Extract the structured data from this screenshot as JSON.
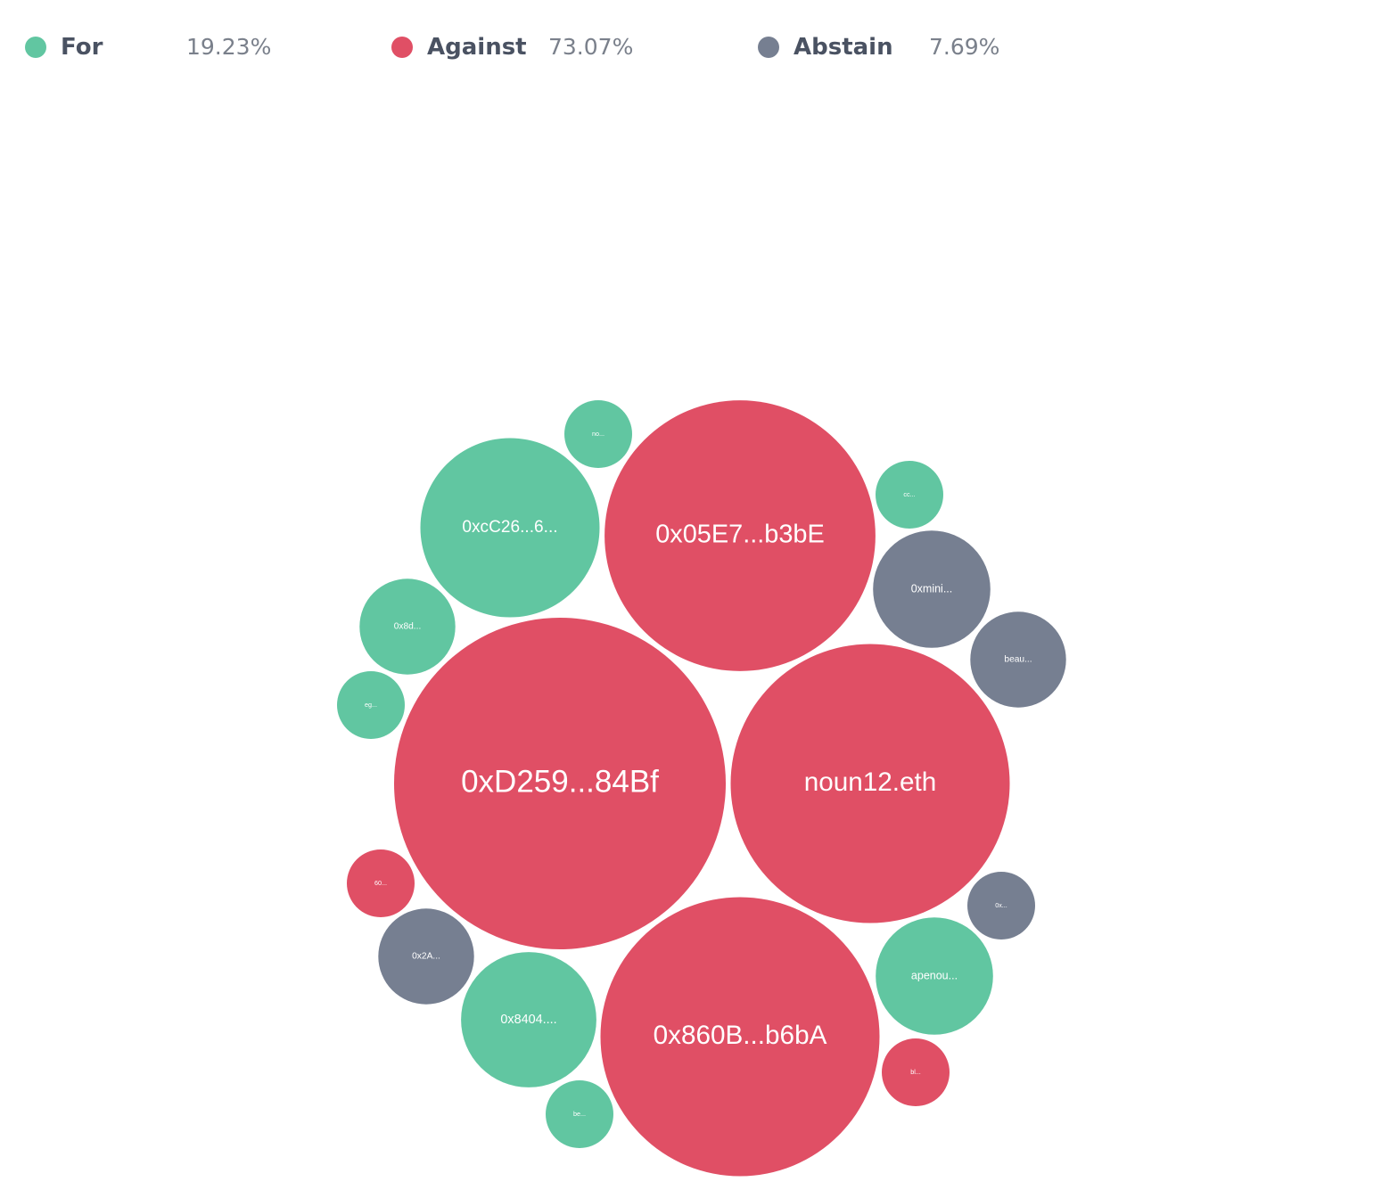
{
  "legend": [
    {
      "label": "For",
      "value": "19.23%",
      "color": "#61c6a1"
    },
    {
      "label": "Against",
      "value": "73.07%",
      "color": "#e04f65"
    },
    {
      "label": "Abstain",
      "value": "7.69%",
      "color": "#767f91"
    }
  ],
  "chart_data": {
    "type": "bubble",
    "categories": [
      "For",
      "Against",
      "Abstain"
    ],
    "colors": {
      "For": "#61c6a1",
      "Against": "#e04f65",
      "Abstain": "#767f91"
    },
    "bubbles": [
      {
        "label": "0xD259...84Bf",
        "category": "Against",
        "weight": 36
      },
      {
        "label": "noun12.eth",
        "category": "Against",
        "weight": 25.5
      },
      {
        "label": "0x860B...b6bA",
        "category": "Against",
        "weight": 25.5
      },
      {
        "label": "0x05E7...b3bE",
        "category": "Against",
        "weight": 24
      },
      {
        "label": "0xcC26...6...",
        "category": "For",
        "weight": 10.5
      },
      {
        "label": "0x8404....",
        "category": "For",
        "weight": 6
      },
      {
        "label": "apenou...",
        "category": "For",
        "weight": 4.5
      },
      {
        "label": "0xmini...",
        "category": "Abstain",
        "weight": 4.5
      },
      {
        "label": "beau...",
        "category": "Abstain",
        "weight": 3
      },
      {
        "label": "0x2A...",
        "category": "Abstain",
        "weight": 3
      },
      {
        "label": "0x8d...",
        "category": "For",
        "weight": 3
      },
      {
        "label": "no...",
        "category": "For",
        "weight": 1.5
      },
      {
        "label": "cc...",
        "category": "For",
        "weight": 1.5
      },
      {
        "label": "eg...",
        "category": "For",
        "weight": 1.5
      },
      {
        "label": "be...",
        "category": "For",
        "weight": 1.5
      },
      {
        "label": "60...",
        "category": "Against",
        "weight": 1.5
      },
      {
        "label": "bl...",
        "category": "Against",
        "weight": 1.5
      },
      {
        "label": "0x...",
        "category": "Abstain",
        "weight": 1.5
      }
    ]
  }
}
